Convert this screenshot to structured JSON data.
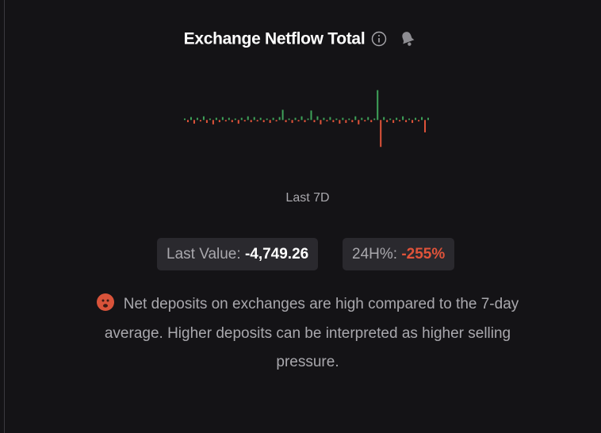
{
  "title": "Exchange Netflow Total",
  "sparkline": {
    "type": "bar",
    "values": [
      2,
      -3,
      4,
      -5,
      3,
      -2,
      5,
      -4,
      2,
      -6,
      3,
      -3,
      4,
      -2,
      3,
      -3,
      2,
      -5,
      3,
      -2,
      5,
      -3,
      4,
      -2,
      3,
      -3,
      2,
      -4,
      3,
      -2,
      4,
      14,
      -3,
      2,
      -4,
      3,
      -2,
      5,
      -3,
      2,
      13,
      -3,
      5,
      -6,
      3,
      -2,
      4,
      -3,
      2,
      -5,
      3,
      -4,
      2,
      -3,
      5,
      -6,
      3,
      -2,
      4,
      -3,
      2,
      41,
      -37,
      4,
      -3,
      2,
      -4,
      3,
      -2,
      5,
      -3,
      2,
      -4,
      3,
      -2,
      4,
      -17,
      3
    ],
    "ylim": [
      -40,
      45
    ],
    "up_color": "#3fa35a",
    "down_color": "#e0533a"
  },
  "period": "Last 7D",
  "stats": [
    {
      "label": "Last Value:",
      "value": "-4,749.26"
    },
    {
      "label": "24H%:",
      "value": "-255%"
    }
  ],
  "description": "Net deposits on exchanges are high compared to the 7-day average. Higher deposits can be interpreted as higher selling pressure."
}
